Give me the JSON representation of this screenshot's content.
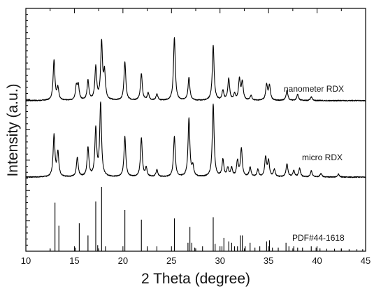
{
  "chart_data": {
    "type": "line",
    "title": "",
    "xlabel": "2 Theta (degree)",
    "ylabel": "Intensity (a.u.)",
    "xlim": [
      10,
      45
    ],
    "x_ticks": [
      10,
      15,
      20,
      25,
      30,
      35,
      40,
      45
    ],
    "y_tick_labels": false,
    "grid": false,
    "legend": "none",
    "colors": {
      "line": "#000000",
      "background": "#ffffff"
    },
    "series": [
      {
        "name": "nanometer RDX",
        "style": "line",
        "baseline": 0.62,
        "peaks": [
          [
            12.9,
            0.165
          ],
          [
            13.3,
            0.05
          ],
          [
            15.2,
            0.055
          ],
          [
            15.4,
            0.06
          ],
          [
            16.4,
            0.08
          ],
          [
            17.2,
            0.135
          ],
          [
            17.8,
            0.235
          ],
          [
            18.1,
            0.11
          ],
          [
            20.2,
            0.16
          ],
          [
            21.9,
            0.11
          ],
          [
            22.6,
            0.03
          ],
          [
            23.5,
            0.025
          ],
          [
            25.3,
            0.26
          ],
          [
            26.8,
            0.095
          ],
          [
            29.3,
            0.225
          ],
          [
            30.3,
            0.04
          ],
          [
            30.9,
            0.09
          ],
          [
            31.5,
            0.025
          ],
          [
            32.0,
            0.085
          ],
          [
            32.3,
            0.075
          ],
          [
            33.2,
            0.02
          ],
          [
            34.8,
            0.065
          ],
          [
            35.1,
            0.06
          ],
          [
            36.9,
            0.04
          ],
          [
            38.0,
            0.025
          ],
          [
            39.4,
            0.015
          ]
        ]
      },
      {
        "name": "micro RDX",
        "style": "line",
        "baseline": 0.305,
        "peaks": [
          [
            12.9,
            0.17
          ],
          [
            13.3,
            0.1
          ],
          [
            15.3,
            0.08
          ],
          [
            16.4,
            0.12
          ],
          [
            17.2,
            0.195
          ],
          [
            17.7,
            0.3
          ],
          [
            20.2,
            0.165
          ],
          [
            21.9,
            0.16
          ],
          [
            22.4,
            0.035
          ],
          [
            23.5,
            0.03
          ],
          [
            25.3,
            0.165
          ],
          [
            26.8,
            0.24
          ],
          [
            27.2,
            0.04
          ],
          [
            29.3,
            0.3
          ],
          [
            30.3,
            0.07
          ],
          [
            30.8,
            0.035
          ],
          [
            31.2,
            0.035
          ],
          [
            31.8,
            0.065
          ],
          [
            32.2,
            0.115
          ],
          [
            33.1,
            0.04
          ],
          [
            33.9,
            0.03
          ],
          [
            34.7,
            0.08
          ],
          [
            35.0,
            0.065
          ],
          [
            35.6,
            0.03
          ],
          [
            36.9,
            0.055
          ],
          [
            37.6,
            0.025
          ],
          [
            38.2,
            0.035
          ],
          [
            39.4,
            0.025
          ],
          [
            40.4,
            0.015
          ],
          [
            42.2,
            0.012
          ]
        ]
      },
      {
        "name": "PDF#44-1618",
        "style": "sticks",
        "baseline": 0.0,
        "sticks": [
          [
            12.5,
            0.01
          ],
          [
            13.0,
            0.2
          ],
          [
            13.4,
            0.105
          ],
          [
            15.1,
            0.015
          ],
          [
            15.5,
            0.115
          ],
          [
            16.4,
            0.065
          ],
          [
            17.2,
            0.205
          ],
          [
            17.4,
            0.025
          ],
          [
            17.8,
            0.265
          ],
          [
            18.2,
            0.02
          ],
          [
            20.2,
            0.17
          ],
          [
            21.9,
            0.13
          ],
          [
            22.5,
            0.02
          ],
          [
            23.5,
            0.02
          ],
          [
            25.3,
            0.135
          ],
          [
            26.7,
            0.035
          ],
          [
            26.9,
            0.1
          ],
          [
            27.1,
            0.035
          ],
          [
            27.4,
            0.015
          ],
          [
            28.2,
            0.02
          ],
          [
            29.3,
            0.14
          ],
          [
            29.5,
            0.03
          ],
          [
            30.2,
            0.02
          ],
          [
            30.4,
            0.055
          ],
          [
            30.9,
            0.04
          ],
          [
            31.2,
            0.035
          ],
          [
            31.5,
            0.02
          ],
          [
            31.8,
            0.02
          ],
          [
            32.1,
            0.065
          ],
          [
            32.3,
            0.065
          ],
          [
            32.6,
            0.02
          ],
          [
            33.1,
            0.035
          ],
          [
            33.6,
            0.015
          ],
          [
            34.1,
            0.02
          ],
          [
            34.8,
            0.04
          ],
          [
            35.1,
            0.045
          ],
          [
            35.4,
            0.015
          ],
          [
            36.0,
            0.015
          ],
          [
            36.8,
            0.035
          ],
          [
            37.1,
            0.02
          ],
          [
            37.6,
            0.02
          ],
          [
            38.0,
            0.015
          ],
          [
            38.5,
            0.015
          ],
          [
            39.4,
            0.02
          ],
          [
            39.9,
            0.015
          ],
          [
            40.3,
            0.012
          ],
          [
            41.0,
            0.01
          ],
          [
            41.8,
            0.01
          ],
          [
            42.5,
            0.01
          ],
          [
            43.3,
            0.008
          ],
          [
            44.1,
            0.008
          ],
          [
            44.7,
            0.008
          ]
        ]
      }
    ]
  }
}
